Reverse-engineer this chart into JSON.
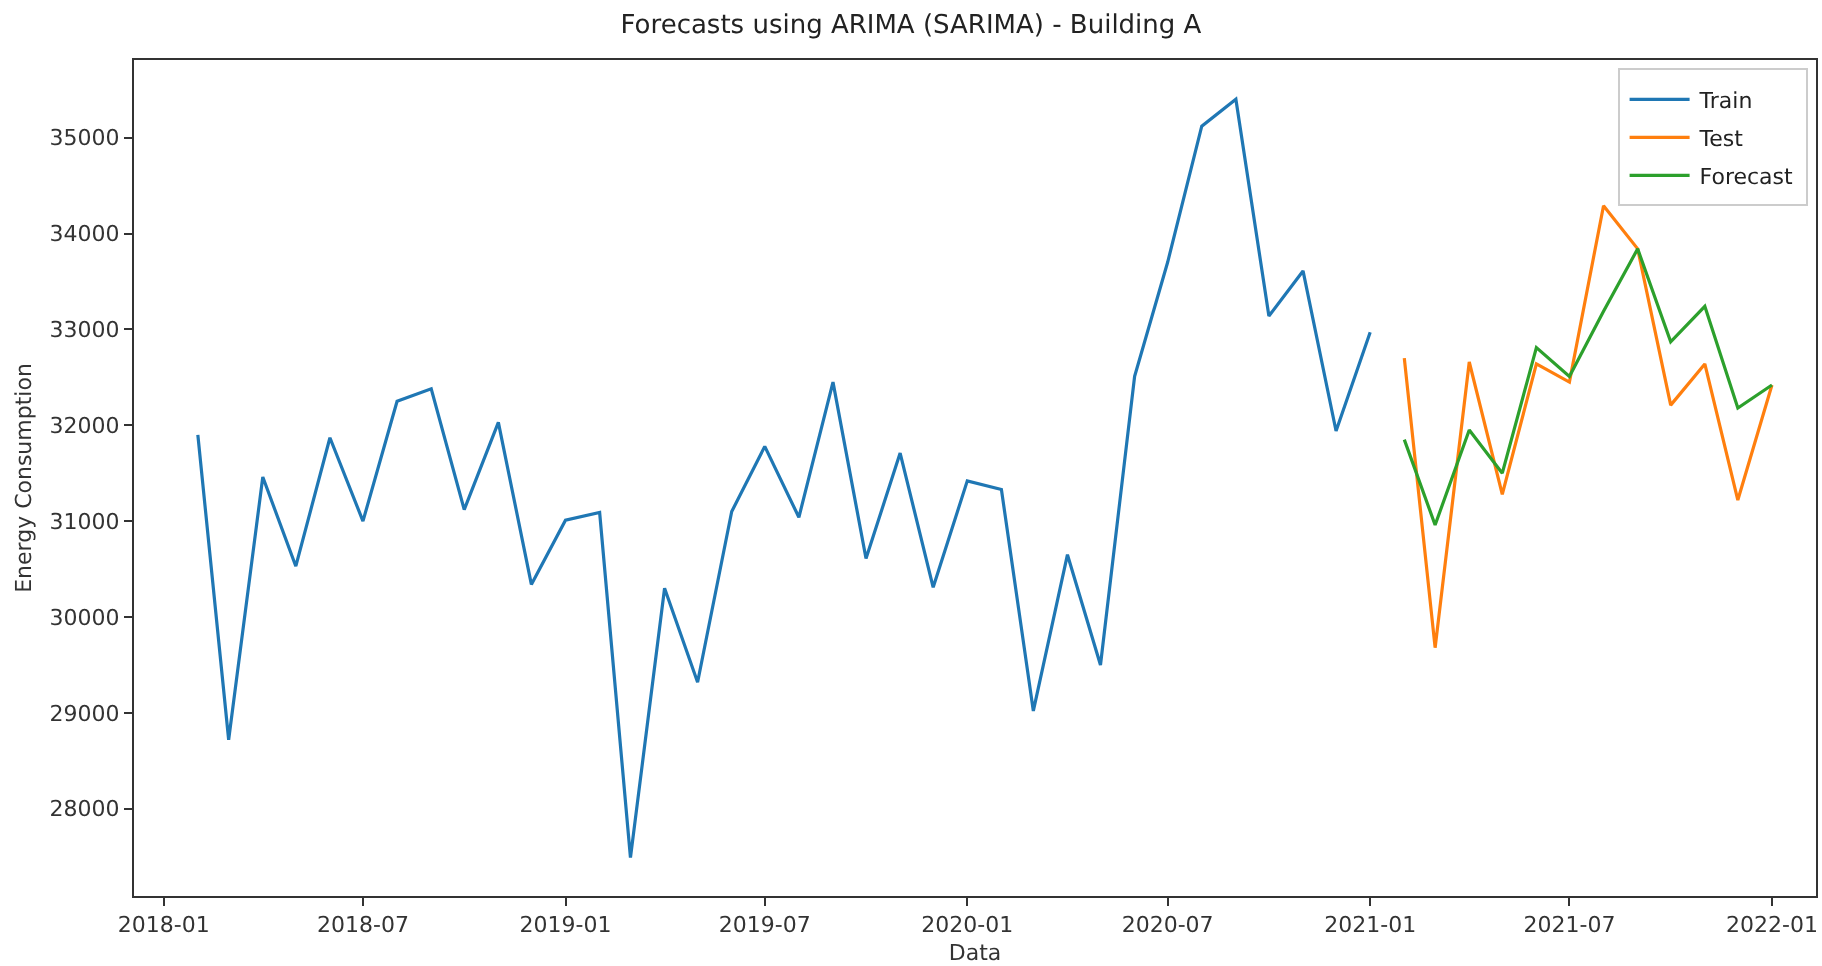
{
  "chart_data": {
    "type": "line",
    "title": "Forecasts using ARIMA (SARIMA) - Building A",
    "xlabel": "Data",
    "ylabel": "Energy Consumption",
    "x": [
      "2018-02",
      "2018-03",
      "2018-04",
      "2018-05",
      "2018-06",
      "2018-07",
      "2018-08",
      "2018-09",
      "2018-10",
      "2018-11",
      "2018-12",
      "2019-01",
      "2019-02",
      "2019-03",
      "2019-04",
      "2019-05",
      "2019-06",
      "2019-07",
      "2019-08",
      "2019-09",
      "2019-10",
      "2019-11",
      "2019-12",
      "2020-01",
      "2020-02",
      "2020-03",
      "2020-04",
      "2020-05",
      "2020-06",
      "2020-07",
      "2020-08",
      "2020-09",
      "2020-10",
      "2020-11",
      "2020-12",
      "2021-01"
    ],
    "series": [
      {
        "name": "Train",
        "color": "#1f77b4",
        "values": [
          31900,
          28720,
          31460,
          30530,
          31870,
          31000,
          32250,
          32380,
          31120,
          32030,
          30340,
          31010,
          31090,
          27490,
          30300,
          29320,
          31100,
          31780,
          31040,
          32450,
          30610,
          31710,
          30310,
          31420,
          31330,
          29020,
          30650,
          29500,
          32510,
          33700,
          35120,
          35400,
          33140,
          33610,
          31940,
          32970
        ]
      },
      {
        "name": "Test",
        "color": "#ff7f0e",
        "x": [
          "2021-02",
          "2021-03",
          "2021-04",
          "2021-05",
          "2021-06",
          "2021-07",
          "2021-08",
          "2021-09",
          "2021-10",
          "2021-11",
          "2021-12",
          "2022-01"
        ],
        "values": [
          32700,
          29680,
          32660,
          31280,
          32640,
          32450,
          34290,
          33840,
          32210,
          32640,
          31220,
          32420
        ]
      },
      {
        "name": "Forecast",
        "color": "#2ca02c",
        "x": [
          "2021-02",
          "2021-03",
          "2021-04",
          "2021-05",
          "2021-06",
          "2021-07",
          "2021-08",
          "2021-09",
          "2021-10",
          "2021-11",
          "2021-12",
          "2022-01"
        ],
        "values": [
          31850,
          30960,
          31950,
          31500,
          32810,
          32510,
          33190,
          33840,
          32870,
          33240,
          32180,
          32420
        ]
      }
    ],
    "xlim": [
      "2017-12-05",
      "2022-02-10"
    ],
    "xticks": [
      "2018-01",
      "2018-07",
      "2019-01",
      "2019-07",
      "2020-01",
      "2020-07",
      "2021-01",
      "2021-07",
      "2022-01"
    ],
    "ylim": [
      27090,
      35810
    ],
    "yticks": [
      28000,
      29000,
      30000,
      31000,
      32000,
      33000,
      34000,
      35000
    ],
    "legend": "top right",
    "marker": "none",
    "line_style": "solid"
  }
}
